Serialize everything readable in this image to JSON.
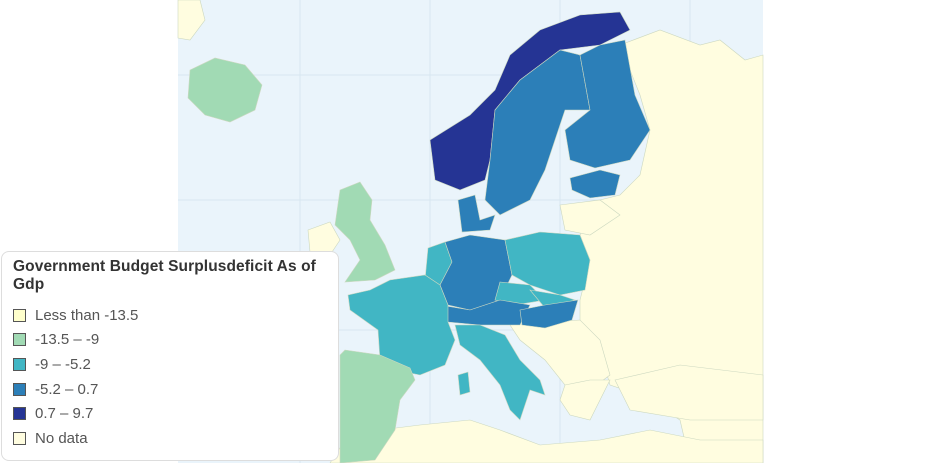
{
  "legend": {
    "title": "Government Budget Surplusdeficit As of Gdp",
    "items": [
      {
        "label": "Less than -13.5",
        "color": "#ffffcc"
      },
      {
        "label": "-13.5 – -9",
        "color": "#a1dab4"
      },
      {
        "label": "-9 – -5.2",
        "color": "#41b6c4"
      },
      {
        "label": "-5.2 – 0.7",
        "color": "#2c7fb8"
      },
      {
        "label": "0.7 – 9.7",
        "color": "#253494"
      },
      {
        "label": "No data",
        "color": "#fffde0"
      }
    ]
  },
  "map": {
    "sea_color": "#eaf4fb",
    "no_data_color": "#fffde0"
  }
}
